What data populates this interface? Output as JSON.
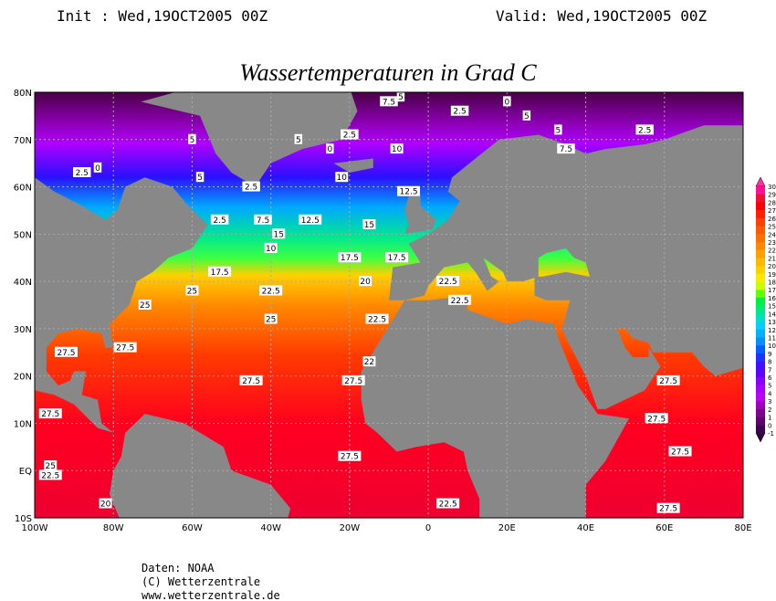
{
  "header": {
    "init": "Init : Wed,19OCT2005 00Z",
    "valid": "Valid: Wed,19OCT2005 00Z"
  },
  "title": "Wassertemperaturen in Grad C",
  "lat_labels": [
    "80N",
    "70N",
    "60N",
    "50N",
    "40N",
    "30N",
    "20N",
    "10N",
    "EQ",
    "10S"
  ],
  "lon_labels": [
    "100W",
    "80W",
    "60W",
    "40W",
    "20W",
    "0",
    "20E",
    "40E",
    "60E",
    "80E"
  ],
  "colorbar": {
    "labels": [
      "30",
      "29",
      "28",
      "27",
      "26",
      "25",
      "24",
      "23",
      "22",
      "21",
      "20",
      "19",
      "18",
      "17",
      "16",
      "15",
      "14",
      "13",
      "12",
      "11",
      "10",
      "9",
      "8",
      "7",
      "6",
      "5",
      "4",
      "3",
      "2",
      "1",
      "0",
      "-1"
    ]
  },
  "contour_labels": [
    "7.5",
    "5",
    "0",
    "2.5",
    "5",
    "5",
    "7.5",
    "2.5",
    "5",
    "2.5",
    "0",
    "10",
    "5",
    "2.5",
    "0",
    "5",
    "2.5",
    "10",
    "12.5",
    "15",
    "12.5",
    "7.5",
    "2.5",
    "10",
    "15",
    "17.5",
    "20",
    "17.5",
    "17.5",
    "25",
    "25",
    "22.5",
    "25",
    "22.5",
    "27.5",
    "27.5",
    "22",
    "27.5",
    "27.5",
    "27.5",
    "27.5",
    "20",
    "22.5",
    "22.5",
    "22.5",
    "27.5",
    "27.5",
    "27.5",
    "27.5",
    "25",
    "22.5"
  ],
  "footer": [
    "Daten: NOAA",
    "(C) Wetterzentrale",
    "www.wetterzentrale.de"
  ]
}
